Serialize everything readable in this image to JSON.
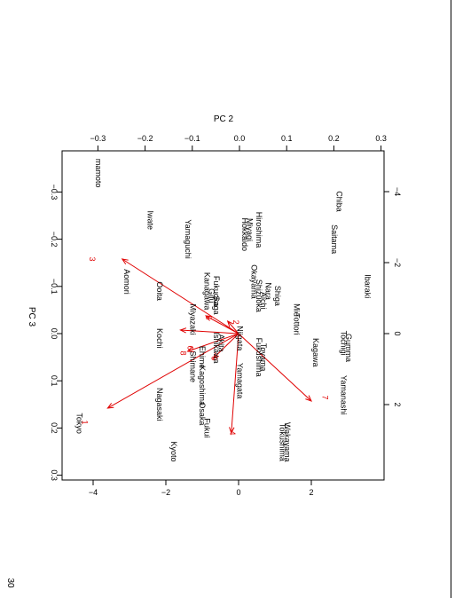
{
  "page_number": "30",
  "chart_data": {
    "type": "scatter",
    "subtype": "biplot",
    "rotated": "90deg clockwise",
    "colors": {
      "points": "#000000",
      "arrows": "#e00000"
    },
    "axes": {
      "top": {
        "label": "PC 2",
        "ticks": [
          -0.3,
          -0.2,
          -0.1,
          0.0,
          0.1,
          0.2,
          0.3
        ],
        "tick_labels": [
          "−0.3",
          "−0.2",
          "−0.1",
          "0.0",
          "0.1",
          "0.2",
          "0.3"
        ]
      },
      "left": {
        "label": "PC 3",
        "ticks": [
          -0.3,
          -0.2,
          -0.1,
          0.0,
          0.1,
          0.2,
          0.3
        ],
        "tick_labels": [
          "−0.3",
          "−0.2",
          "−0.1",
          "0.0",
          "0.1",
          "0.2",
          "0.3"
        ]
      },
      "bottom": {
        "ticks": [
          -4,
          -2,
          0,
          2
        ],
        "tick_labels": [
          "−4",
          "−2",
          "0",
          "2"
        ]
      },
      "right": {
        "ticks": [
          -4,
          -2,
          0,
          2
        ],
        "tick_labels": [
          "−4",
          "−2",
          "0",
          "2"
        ]
      }
    },
    "points": [
      {
        "name": "mamoto",
        "x": -0.3,
        "y": -0.34
      },
      {
        "name": "Chiba",
        "x": 0.21,
        "y": -0.28
      },
      {
        "name": "Iwate",
        "x": -0.19,
        "y": -0.24
      },
      {
        "name": "Saitama",
        "x": 0.2,
        "y": -0.2
      },
      {
        "name": "Yamaguchi",
        "x": -0.11,
        "y": -0.2
      },
      {
        "name": "Hokkaido",
        "x": 0.01,
        "y": -0.21
      },
      {
        "name": "Miyagi",
        "x": 0.02,
        "y": -0.22
      },
      {
        "name": "Hiroshima",
        "x": 0.04,
        "y": -0.22
      },
      {
        "name": "Aomori",
        "x": -0.24,
        "y": -0.11
      },
      {
        "name": "Ooita",
        "x": -0.17,
        "y": -0.09
      },
      {
        "name": "Ibaraki",
        "x": 0.27,
        "y": -0.1
      },
      {
        "name": "Okayama",
        "x": 0.03,
        "y": -0.11
      },
      {
        "name": "Nara",
        "x": 0.06,
        "y": -0.09
      },
      {
        "name": "Shiga",
        "x": 0.08,
        "y": -0.08
      },
      {
        "name": "Shizuoka",
        "x": 0.04,
        "y": -0.08
      },
      {
        "name": "Aichi",
        "x": 0.05,
        "y": -0.07
      },
      {
        "name": "Kanagawa",
        "x": -0.07,
        "y": -0.09
      },
      {
        "name": "Gifu",
        "x": -0.06,
        "y": -0.08
      },
      {
        "name": "Fukuoka",
        "x": -0.05,
        "y": -0.09
      },
      {
        "name": "Saga",
        "x": -0.05,
        "y": -0.06
      },
      {
        "name": "Mie",
        "x": 0.12,
        "y": -0.05
      },
      {
        "name": "Miyazaki",
        "x": -0.1,
        "y": -0.03
      },
      {
        "name": "Tottori",
        "x": 0.12,
        "y": -0.02
      },
      {
        "name": "Kochi",
        "x": -0.17,
        "y": 0.01
      },
      {
        "name": "Niigata",
        "x": 0.0,
        "y": 0.01
      },
      {
        "name": "Ishikawa",
        "x": -0.05,
        "y": 0.03
      },
      {
        "name": "Akita",
        "x": -0.04,
        "y": 0.02
      },
      {
        "name": "Ehime",
        "x": -0.08,
        "y": 0.05
      },
      {
        "name": "Shimane",
        "x": -0.1,
        "y": 0.07
      },
      {
        "name": "Fukushima",
        "x": 0.04,
        "y": 0.05
      },
      {
        "name": "Toyama",
        "x": 0.05,
        "y": 0.05
      },
      {
        "name": "Kagawa",
        "x": 0.16,
        "y": 0.04
      },
      {
        "name": "Gumma",
        "x": 0.23,
        "y": 0.03
      },
      {
        "name": "Tochigi",
        "x": 0.22,
        "y": 0.02
      },
      {
        "name": "Yamagata",
        "x": 0.0,
        "y": 0.1
      },
      {
        "name": "Kagoshima",
        "x": -0.08,
        "y": 0.11
      },
      {
        "name": "Osaka",
        "x": -0.08,
        "y": 0.17
      },
      {
        "name": "Yamanashi",
        "x": 0.22,
        "y": 0.13
      },
      {
        "name": "Nagasaki",
        "x": -0.17,
        "y": 0.15
      },
      {
        "name": "Fukui",
        "x": -0.07,
        "y": 0.2
      },
      {
        "name": "Tokushima",
        "x": 0.09,
        "y": 0.23
      },
      {
        "name": "Wakayama",
        "x": 0.1,
        "y": 0.23
      },
      {
        "name": "Tokyo",
        "x": -0.34,
        "y": 0.19
      },
      {
        "name": "Kyoto",
        "x": -0.14,
        "y": 0.25
      }
    ],
    "arrows": [
      {
        "label": "1",
        "x": -3.6,
        "y": 2.1
      },
      {
        "label": "2",
        "x": -0.3,
        "y": -0.35
      },
      {
        "label": "3",
        "x": -3.2,
        "y": -2.1
      },
      {
        "label": "4",
        "x": -0.2,
        "y": 2.8
      },
      {
        "label": "5",
        "x": -0.9,
        "y": -0.5
      },
      {
        "label": "6",
        "x": -1.6,
        "y": -0.1
      },
      {
        "label": "7",
        "x": 2.0,
        "y": 1.9
      },
      {
        "label": "8",
        "x": -1.4,
        "y": 0.5
      },
      {
        "label": "9",
        "x": -0.7,
        "y": 0.7
      }
    ],
    "arrow_tip_labels": [
      {
        "label": "1",
        "x": -4.3,
        "y": 2.5
      },
      {
        "label": "2",
        "x": -0.15,
        "y": -0.32
      },
      {
        "label": "3",
        "x": -4.1,
        "y": -2.1
      },
      {
        "label": "4",
        "x": -0.25,
        "y": 2.8
      },
      {
        "label": "5",
        "x": -0.9,
        "y": -0.45
      },
      {
        "label": "6",
        "x": -1.4,
        "y": 0.4
      },
      {
        "label": "7",
        "x": 2.3,
        "y": 1.8
      },
      {
        "label": "8",
        "x": -1.6,
        "y": 0.55
      },
      {
        "label": "9",
        "x": -0.75,
        "y": 0.7
      }
    ]
  }
}
